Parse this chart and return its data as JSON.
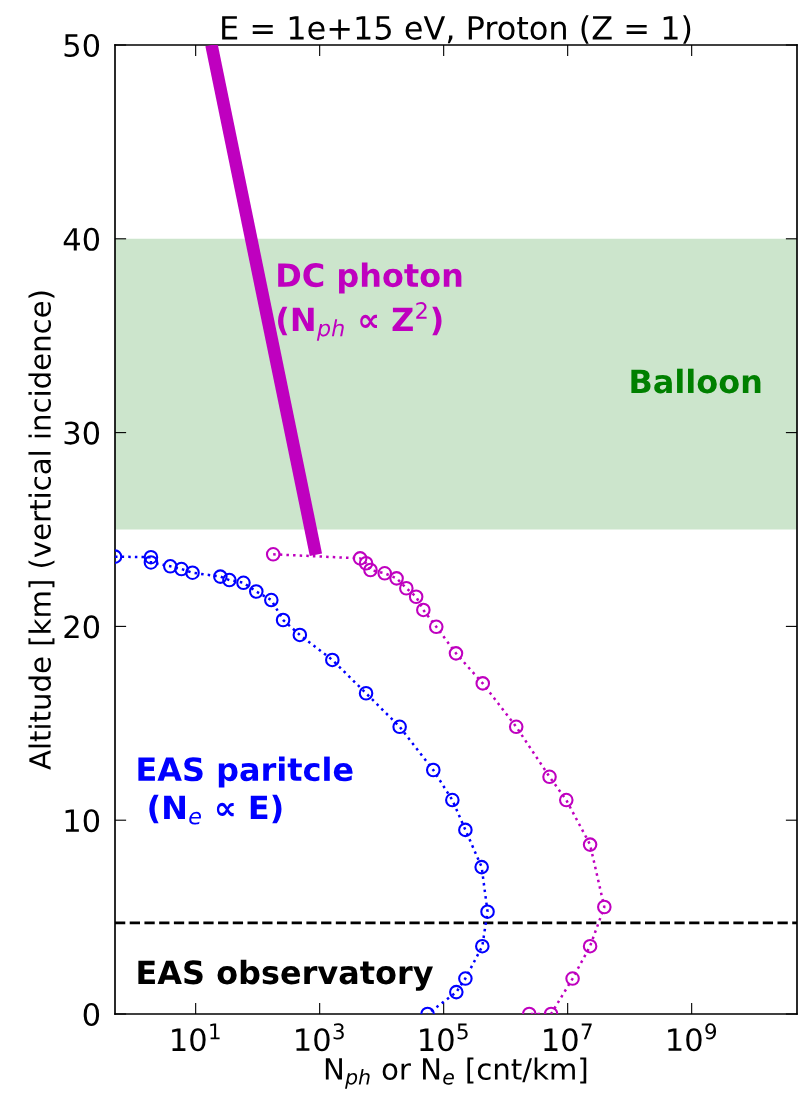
{
  "chart_data": {
    "type": "line",
    "title": "E = 1e+15 eV, Proton (Z = 1)",
    "xlabel": "N$_{ph}$ or N$_{e}$ [cnt/km]",
    "ylabel": "Altitude [km] (vertical incidence)",
    "log": "x",
    "xlim": [
      0.5,
      50000000000.0
    ],
    "ylim": [
      0,
      50
    ],
    "xticks": [
      {
        "value": 10,
        "label": "10$^{1}$"
      },
      {
        "value": 1000,
        "label": "10$^{3}$"
      },
      {
        "value": 100000,
        "label": "10$^{5}$"
      },
      {
        "value": 10000000,
        "label": "10$^{7}$"
      },
      {
        "value": 1000000000,
        "label": "10$^{9}$"
      }
    ],
    "yticks": [
      0,
      10,
      20,
      30,
      40,
      50
    ],
    "grid": false,
    "legend": false,
    "series": [
      {
        "name": "DC photon\n(N$_{ph}$ ∝ Z$^{2}$)",
        "marker": "none",
        "line_style": "solid",
        "color": "#bf00bf",
        "x": [
          18,
          870
        ],
        "values": [
          50,
          23.7
        ]
      },
      {
        "marker": "circle",
        "line_style": "dotted",
        "color": "#bf00bf",
        "x": [
          178,
          4500,
          5600,
          6600,
          11200,
          17400,
          25000,
          36000,
          47000,
          76000,
          158000,
          427000,
          1480000,
          5100000,
          9500000,
          23000000,
          39000000,
          23000000,
          12000000,
          5400000,
          2400000
        ],
        "values": [
          23.72,
          23.51,
          23.26,
          22.91,
          22.74,
          22.48,
          21.97,
          21.53,
          20.85,
          19.98,
          18.61,
          17.06,
          14.82,
          12.24,
          11.04,
          8.74,
          5.52,
          3.5,
          1.83,
          0,
          0
        ]
      },
      {
        "name": "EAS paritcle\n (N$_{e}$ ∝ E)",
        "marker": "circle",
        "line_style": "dotted",
        "color": "#0000ff",
        "x": [
          0.5,
          1.9,
          1.9,
          3.9,
          5.9,
          8.9,
          25,
          35,
          59,
          95,
          166,
          257,
          479,
          1600,
          5600,
          19500,
          68000,
          138000,
          224000,
          410000,
          510000,
          420000,
          224000,
          160000,
          55000
        ],
        "values": [
          23.6,
          23.57,
          23.3,
          23.1,
          22.96,
          22.77,
          22.57,
          22.39,
          22.25,
          21.8,
          21.36,
          20.33,
          19.56,
          18.27,
          16.55,
          14.82,
          12.59,
          11.04,
          9.5,
          7.58,
          5.28,
          3.5,
          1.83,
          1.13,
          0
        ]
      }
    ],
    "bands": [
      {
        "axis": "y",
        "from": 25,
        "to": 40,
        "label": "Balloon",
        "color": "#cce5cc"
      }
    ],
    "ref_lines": [
      {
        "axis": "y",
        "value": 4.7,
        "label": "EAS observatory",
        "color": "#000000",
        "line_style": "dashed"
      }
    ]
  }
}
